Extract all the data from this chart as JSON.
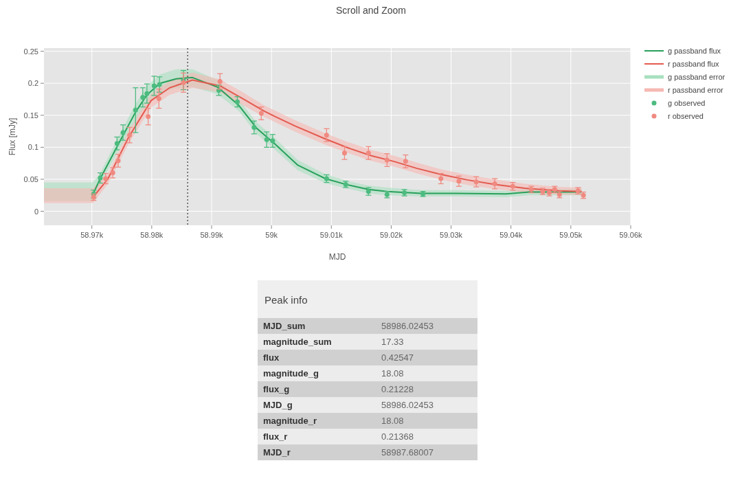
{
  "chart_data": [
    {
      "type": "line",
      "title": "Scroll and Zoom",
      "xlabel": "MJD",
      "ylabel": "Flux [mJy]",
      "xlim": [
        58962,
        59060
      ],
      "ylim": [
        -0.022,
        0.255
      ],
      "xticks": [
        {
          "value": 58970,
          "label": "58.97k"
        },
        {
          "value": 58980,
          "label": "58.98k"
        },
        {
          "value": 58990,
          "label": "58.99k"
        },
        {
          "value": 59000,
          "label": "59k"
        },
        {
          "value": 59010,
          "label": "59.01k"
        },
        {
          "value": 59020,
          "label": "59.02k"
        },
        {
          "value": 59030,
          "label": "59.03k"
        },
        {
          "value": 59040,
          "label": "59.04k"
        },
        {
          "value": 59050,
          "label": "59.05k"
        },
        {
          "value": 59060,
          "label": "59.06k"
        }
      ],
      "yticks": [
        0,
        0.05,
        0.1,
        0.15,
        0.2,
        0.25
      ],
      "grid": true,
      "legend": "top right",
      "ref_lines": [
        {
          "axis": "x",
          "value": 58986,
          "color": "#555555",
          "line_style": "dotted"
        }
      ],
      "series": [
        {
          "name": "g passband flux",
          "type": "line",
          "color": "#27a05a",
          "x": [
            58970.2,
            58971.4,
            58974.6,
            58977.3,
            58979.2,
            58981.4,
            58984.1,
            58986.8,
            58991,
            58994.5,
            58997.5,
            59000.6,
            59004.4,
            59009,
            59012.4,
            59016.2,
            59019.3,
            59025,
            59030.7,
            59039.2,
            59043,
            59051.8
          ],
          "values": [
            0.027,
            0.051,
            0.108,
            0.155,
            0.182,
            0.2,
            0.207,
            0.209,
            0.194,
            0.166,
            0.13,
            0.105,
            0.072,
            0.051,
            0.042,
            0.034,
            0.031,
            0.028,
            0.028,
            0.027,
            0.03,
            0.03
          ]
        },
        {
          "name": "r passband flux",
          "type": "line",
          "color": "#e35a4f",
          "x": [
            58970.2,
            58972.7,
            58976.1,
            58979.9,
            58983,
            58986.8,
            58991.4,
            58995.2,
            58998.7,
            59000.6,
            59004,
            59009,
            59012.8,
            59016.6,
            59020.4,
            59024.3,
            59028.1,
            59032.7,
            59037.3,
            59042.3,
            59048,
            59051.8
          ],
          "values": [
            0.022,
            0.051,
            0.115,
            0.173,
            0.193,
            0.205,
            0.196,
            0.176,
            0.157,
            0.148,
            0.133,
            0.113,
            0.099,
            0.087,
            0.078,
            0.067,
            0.058,
            0.049,
            0.042,
            0.036,
            0.032,
            0.031
          ]
        },
        {
          "name": "g passband error",
          "type": "area",
          "color": "#a8e0bf",
          "x": [
            58962,
            58970.2,
            58971.4,
            58974.6,
            58977.3,
            58979.2,
            58981.4,
            58984.1,
            58986.8,
            58991,
            58994.5,
            58997.5,
            59000.6,
            59004.4,
            59009,
            59012.4,
            59016.2,
            59019.3,
            59025,
            59030.7,
            59039.2,
            59043,
            59051.8
          ],
          "values": [
            null,
            null,
            null,
            null,
            null,
            null,
            null,
            null,
            null,
            null,
            null,
            null,
            null,
            null,
            null,
            null,
            null,
            null,
            null,
            null,
            null,
            null,
            null
          ],
          "lower": [
            0.016,
            0.016,
            0.042,
            0.097,
            0.142,
            0.168,
            0.186,
            0.192,
            0.194,
            0.183,
            0.157,
            0.121,
            0.096,
            0.064,
            0.044,
            0.036,
            0.028,
            0.025,
            0.023,
            0.023,
            0.022,
            0.025,
            0.025
          ],
          "upper": [
            0.045,
            0.045,
            0.06,
            0.119,
            0.168,
            0.196,
            0.214,
            0.222,
            0.222,
            0.205,
            0.175,
            0.139,
            0.114,
            0.08,
            0.058,
            0.048,
            0.04,
            0.037,
            0.033,
            0.033,
            0.032,
            0.035,
            0.035
          ]
        },
        {
          "name": "r passband error",
          "type": "area",
          "color": "#f6b8b3",
          "x": [
            58962,
            58970.2,
            58972.7,
            58976.1,
            58979.9,
            58983,
            58986.8,
            58991.4,
            58995.2,
            58998.7,
            59004,
            59009,
            59012.8,
            59016.6,
            59020.4,
            59024.3,
            59028.1,
            59032.7,
            59037.3,
            59042.3,
            59048,
            59051.8
          ],
          "values": [
            null,
            null,
            null,
            null,
            null,
            null,
            null,
            null,
            null,
            null,
            null,
            null,
            null,
            null,
            null,
            null,
            null,
            null,
            null,
            null,
            null,
            null
          ],
          "lower": [
            0.013,
            0.013,
            0.043,
            0.105,
            0.162,
            0.182,
            0.193,
            0.186,
            0.166,
            0.148,
            0.124,
            0.104,
            0.091,
            0.079,
            0.07,
            0.059,
            0.05,
            0.041,
            0.035,
            0.029,
            0.026,
            0.025
          ],
          "upper": [
            0.036,
            0.036,
            0.06,
            0.125,
            0.184,
            0.204,
            0.217,
            0.206,
            0.186,
            0.166,
            0.142,
            0.122,
            0.108,
            0.096,
            0.087,
            0.076,
            0.066,
            0.057,
            0.05,
            0.043,
            0.038,
            0.037
          ]
        },
        {
          "name": "g observed",
          "type": "scatter",
          "marker": "circle",
          "color": "#4cbb7f",
          "x": [
            58970.3,
            58971.4,
            58974.2,
            58975.2,
            58977.3,
            58978.5,
            58979.2,
            58980.4,
            58981.3,
            58985.3,
            58991.2,
            58994.3,
            58997.1,
            58999.2,
            59000.2,
            59009.2,
            59012.4,
            59016.2,
            59019.3,
            59022.2,
            59025.3
          ],
          "values": [
            0.027,
            0.052,
            0.106,
            0.123,
            0.158,
            0.178,
            0.184,
            0.196,
            0.198,
            0.205,
            0.189,
            0.171,
            0.131,
            0.112,
            0.11,
            0.051,
            0.042,
            0.031,
            0.026,
            0.029,
            0.027
          ],
          "errors": [
            0.006,
            0.008,
            0.01,
            0.012,
            0.035,
            0.015,
            0.015,
            0.015,
            0.012,
            0.015,
            0.008,
            0.008,
            0.01,
            0.012,
            0.01,
            0.006,
            0.005,
            0.006,
            0.005,
            0.005,
            0.004
          ]
        },
        {
          "name": "r observed",
          "type": "scatter",
          "marker": "circle",
          "color": "#f08a80",
          "x": [
            58970.3,
            58972.3,
            58973.5,
            58974.4,
            58976.3,
            58979.4,
            58981.2,
            58985.3,
            58991.4,
            58998.3,
            59009.2,
            59012.2,
            59016.2,
            59019.3,
            59022.4,
            59028.3,
            59031.3,
            59034.2,
            59037.3,
            59040.3,
            59043.4,
            59045.3,
            59046.4,
            59047.3,
            59048.1,
            59051.2,
            59052.1
          ],
          "values": [
            0.022,
            0.051,
            0.06,
            0.079,
            0.119,
            0.148,
            0.176,
            0.201,
            0.203,
            0.153,
            0.119,
            0.091,
            0.091,
            0.08,
            0.078,
            0.051,
            0.047,
            0.046,
            0.043,
            0.039,
            0.034,
            0.031,
            0.029,
            0.034,
            0.026,
            0.032,
            0.025
          ],
          "errors": [
            0.005,
            0.008,
            0.008,
            0.01,
            0.012,
            0.013,
            0.015,
            0.015,
            0.012,
            0.01,
            0.01,
            0.01,
            0.01,
            0.01,
            0.01,
            0.008,
            0.008,
            0.008,
            0.008,
            0.006,
            0.005,
            0.005,
            0.005,
            0.005,
            0.005,
            0.005,
            0.005
          ]
        }
      ]
    },
    {
      "type": "other",
      "title": "Peak info",
      "categories": [
        "MJD_sum",
        "magnitude_sum",
        "flux",
        "magnitude_g",
        "flux_g",
        "MJD_g",
        "magnitude_r",
        "flux_r",
        "MJD_r"
      ],
      "values": [
        58986.02453,
        17.33,
        0.42547,
        18.08,
        0.21228,
        58986.02453,
        18.08,
        0.21368,
        58987.68007
      ],
      "data_labels": true
    }
  ]
}
